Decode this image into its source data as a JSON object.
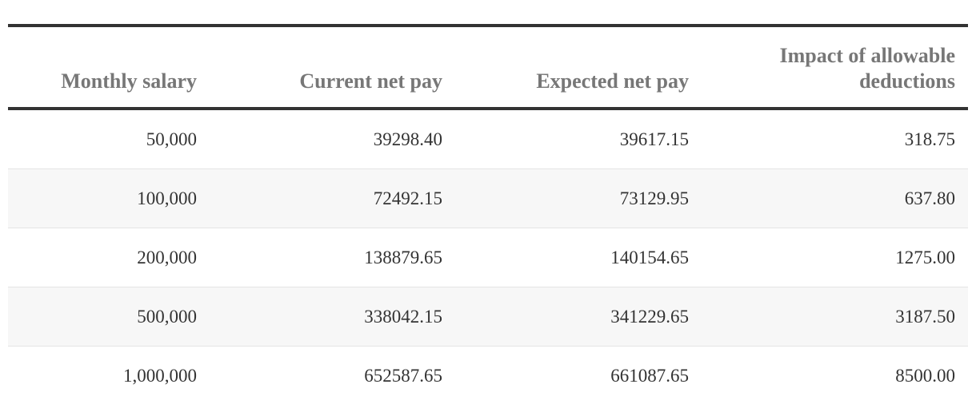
{
  "table": {
    "header": [
      "Monthly salary",
      "Current net pay",
      "Expected net pay",
      "Impact of allowable deductions"
    ],
    "rows": [
      [
        "50,000",
        "39298.40",
        "39617.15",
        "318.75"
      ],
      [
        "100,000",
        "72492.15",
        "73129.95",
        "637.80"
      ],
      [
        "200,000",
        "138879.65",
        "140154.65",
        "1275.00"
      ],
      [
        "500,000",
        "338042.15",
        "341229.65",
        "3187.50"
      ],
      [
        "1,000,000",
        "652587.65",
        "661087.65",
        "8500.00"
      ]
    ]
  }
}
